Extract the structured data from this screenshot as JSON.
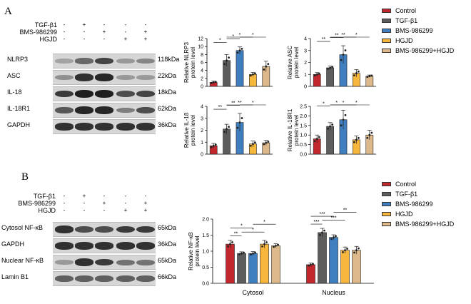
{
  "colors": {
    "Control": "#c1272d",
    "TGF-β1": "#5d5d5d",
    "BMS-986299": "#3f7fbf",
    "HGJD": "#f6b73c",
    "BMS-986299+HGJD": "#ddb88a"
  },
  "panelA": {
    "letter": "A",
    "treatments": [
      {
        "label": "TGF-β1",
        "signs": [
          "-",
          "+",
          "-",
          "-",
          "-"
        ]
      },
      {
        "label": "BMS-986299",
        "signs": [
          "-",
          "-",
          "+",
          "-",
          "+"
        ]
      },
      {
        "label": "HGJD",
        "signs": [
          "-",
          "-",
          "-",
          "+",
          "+"
        ]
      }
    ],
    "blots": [
      {
        "name": "NLRP3",
        "kda": "118kDa",
        "intensity": [
          0.25,
          0.55,
          0.75,
          0.3,
          0.4
        ]
      },
      {
        "name": "ASC",
        "kda": "22kDa",
        "intensity": [
          0.35,
          0.85,
          0.9,
          0.3,
          0.3
        ]
      },
      {
        "name": "IL-18",
        "kda": "18kDa",
        "intensity": [
          0.8,
          0.95,
          0.95,
          0.7,
          0.75
        ]
      },
      {
        "name": "IL-18R1",
        "kda": "62kDa",
        "intensity": [
          0.65,
          0.9,
          0.9,
          0.45,
          0.7
        ]
      },
      {
        "name": "GAPDH",
        "kda": "36kDa",
        "intensity": [
          0.85,
          0.85,
          0.85,
          0.85,
          0.85
        ]
      }
    ]
  },
  "panelB": {
    "letter": "B",
    "treatments": [
      {
        "label": "TGF-β1",
        "signs": [
          "-",
          "+",
          "-",
          "-",
          "-"
        ]
      },
      {
        "label": "BMS-986299",
        "signs": [
          "-",
          "-",
          "+",
          "-",
          "+"
        ]
      },
      {
        "label": "HGJD",
        "signs": [
          "-",
          "-",
          "-",
          "+",
          "+"
        ]
      }
    ],
    "blots": [
      {
        "name": "Cytosol NF-κB",
        "kda": "65kDa",
        "intensity": [
          0.85,
          0.7,
          0.7,
          0.8,
          0.8
        ]
      },
      {
        "name": "GAPDH",
        "kda": "36kDa",
        "intensity": [
          0.85,
          0.85,
          0.85,
          0.85,
          0.85
        ]
      },
      {
        "name": "Nuclear NF-κB",
        "kda": "65kDa",
        "intensity": [
          0.3,
          0.85,
          0.8,
          0.5,
          0.5
        ]
      },
      {
        "name": "Lamin B1",
        "kda": "66kDa",
        "intensity": [
          0.6,
          0.6,
          0.6,
          0.6,
          0.6
        ]
      }
    ]
  },
  "chart_data": [
    {
      "type": "bar",
      "ylabel": "Relative NLRP3 protein level",
      "ylim": [
        0,
        12
      ],
      "yticks": [
        "0",
        "2",
        "4",
        "6",
        "8",
        "10",
        "12"
      ],
      "categories": [
        "Control",
        "TGF-β1",
        "BMS-986299",
        "HGJD",
        "BMS-986299+HGJD"
      ],
      "values": [
        1,
        6.5,
        9,
        3,
        5
      ],
      "errors": [
        0.3,
        1.5,
        0.9,
        0.5,
        1.3
      ],
      "sig": [
        "*",
        "*",
        "*",
        "*"
      ]
    },
    {
      "type": "bar",
      "ylabel": "Relative ASC protein level",
      "ylim": [
        0,
        4
      ],
      "yticks": [
        "0",
        "1",
        "2",
        "3",
        "4"
      ],
      "categories": [
        "Control",
        "TGF-β1",
        "BMS-986299",
        "HGJD",
        "BMS-986299+HGJD"
      ],
      "values": [
        1,
        1.55,
        2.65,
        1.1,
        0.85
      ],
      "errors": [
        0.15,
        0.15,
        0.75,
        0.3,
        0.1
      ],
      "sig": [
        "**",
        "**",
        "**",
        "*"
      ]
    },
    {
      "type": "bar",
      "ylabel": "Relative IL-18 protein level",
      "ylim": [
        0,
        4
      ],
      "yticks": [
        "0",
        "1",
        "2",
        "3",
        "4"
      ],
      "categories": [
        "Control",
        "TGF-β1",
        "BMS-986299",
        "HGJD",
        "BMS-986299+HGJD"
      ],
      "values": [
        0.7,
        2.1,
        2.65,
        0.85,
        0.95
      ],
      "errors": [
        0.2,
        0.4,
        0.75,
        0.25,
        0.2
      ],
      "sig": [
        "**",
        "**",
        "**",
        "*"
      ]
    },
    {
      "type": "bar",
      "ylabel": "Relative IL-18R1 protein level",
      "ylim": [
        0,
        2.5
      ],
      "yticks": [
        "0.0",
        "0.5",
        "1.0",
        "1.5",
        "2.0",
        "2.5"
      ],
      "categories": [
        "Control",
        "TGF-β1",
        "BMS-986299",
        "HGJD",
        "BMS-986299+HGJD"
      ],
      "values": [
        0.8,
        1.45,
        1.8,
        0.75,
        1.0
      ],
      "errors": [
        0.2,
        0.2,
        0.5,
        0.2,
        0.25
      ],
      "sig": [
        "*",
        "*",
        "*",
        "*"
      ]
    },
    {
      "type": "bar",
      "ylabel": "Relative NF-κB protein level",
      "ylim": [
        0,
        2.0
      ],
      "yticks": [
        "0.0",
        "0.5",
        "1.0",
        "1.5",
        "2.0"
      ],
      "groups": [
        "Cytosol",
        "Nucleus"
      ],
      "categories": [
        "Control",
        "TGF-β1",
        "BMS-986299",
        "HGJD",
        "BMS-986299+HGJD"
      ],
      "series": [
        {
          "name": "Cytosol",
          "values": [
            1.22,
            0.93,
            0.93,
            1.22,
            1.17
          ],
          "errors": [
            0.12,
            0.05,
            0.06,
            0.12,
            0.06
          ]
        },
        {
          "name": "Nucleus",
          "values": [
            0.58,
            1.58,
            1.43,
            1.03,
            1.03
          ],
          "errors": [
            0.05,
            0.13,
            0.08,
            0.1,
            0.12
          ]
        }
      ],
      "sig_cytosol": [
        "**",
        "*",
        "*",
        "*"
      ],
      "sig_nucleus": [
        "***",
        "***",
        "***",
        "**"
      ]
    }
  ],
  "legend_labels": [
    "Control",
    "TGF-β1",
    "BMS-986299",
    "HGJD",
    "BMS-986299+HGJD"
  ]
}
